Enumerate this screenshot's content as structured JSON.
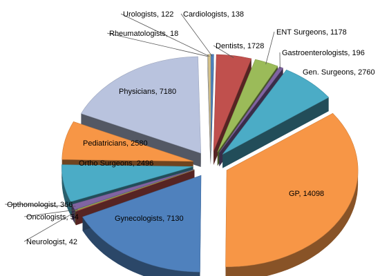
{
  "chart_data": {
    "type": "pie",
    "title": "",
    "slices": [
      {
        "label": "Cardiologists",
        "value": 138,
        "color": "#4F81BD"
      },
      {
        "label": "Dentists",
        "value": 1728,
        "color": "#C0504D"
      },
      {
        "label": "ENT Surgeons",
        "value": 1178,
        "color": "#9BBB59"
      },
      {
        "label": "Gastroenterologists",
        "value": 196,
        "color": "#8064A2"
      },
      {
        "label": "Gen. Surgeons",
        "value": 2760,
        "color": "#4BACC6"
      },
      {
        "label": "GP",
        "value": 14098,
        "color": "#F79646"
      },
      {
        "label": "Gynecologists",
        "value": 7130,
        "color": "#4F81BD"
      },
      {
        "label": "Neurologist",
        "value": 42,
        "color": "#C0504D"
      },
      {
        "label": "Oncologists",
        "value": 54,
        "color": "#9BBB59"
      },
      {
        "label": "Opthomologist",
        "value": 366,
        "color": "#8064A2"
      },
      {
        "label": "Ortho Surgeons",
        "value": 2496,
        "color": "#4BACC6"
      },
      {
        "label": "Pediatricians",
        "value": 2580,
        "color": "#F79646"
      },
      {
        "label": "Physicians",
        "value": 7180,
        "color": "#B9C3DE"
      },
      {
        "label": "Rheumatologists",
        "value": 18,
        "color": "#C9C9C9"
      },
      {
        "label": "Urologists",
        "value": 122,
        "color": "#D4C28A"
      }
    ]
  }
}
